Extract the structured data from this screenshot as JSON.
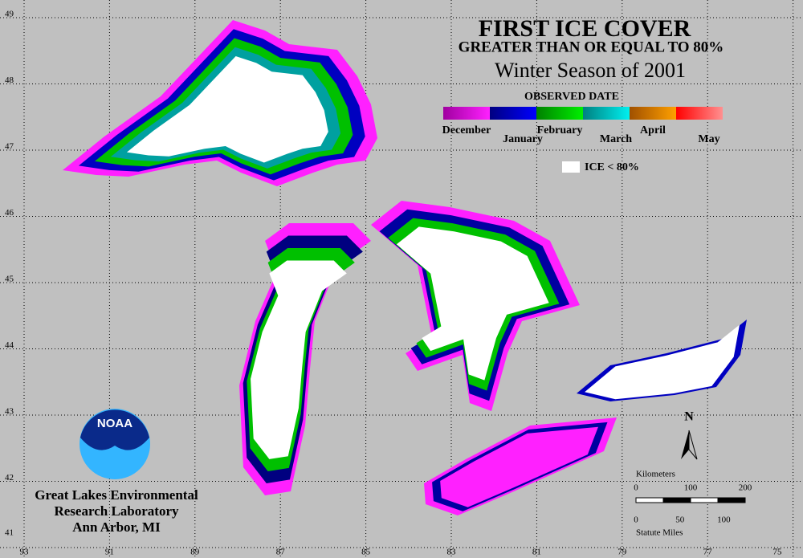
{
  "title": "FIRST ICE COVER",
  "subtitle": "GREATER THAN OR EQUAL TO 80%",
  "season": "Winter Season of 2001",
  "legend": {
    "title": "OBSERVED DATE",
    "items": [
      {
        "label": "December",
        "colors": [
          "#a000a0",
          "#ff20ff"
        ]
      },
      {
        "label": "January",
        "colors": [
          "#000080",
          "#0000ff"
        ]
      },
      {
        "label": "February",
        "colors": [
          "#008000",
          "#00f000"
        ]
      },
      {
        "label": "March",
        "colors": [
          "#008080",
          "#00f0f0"
        ]
      },
      {
        "label": "April",
        "colors": [
          "#a05000",
          "#ffa000"
        ]
      },
      {
        "label": "May",
        "colors": [
          "#ff0000",
          "#ff9090"
        ]
      }
    ],
    "no_ice": "ICE < 80%"
  },
  "grid": {
    "latitudes": [
      49,
      48,
      47,
      46,
      45,
      44,
      43,
      42,
      41
    ],
    "longitudes": [
      93,
      91,
      89,
      87,
      85,
      83,
      81,
      79,
      77,
      75
    ]
  },
  "north": "N",
  "scale": {
    "km_label": "Kilometers",
    "km_ticks": [
      0,
      100,
      200
    ],
    "mi_label": "Statute Miles",
    "mi_ticks": [
      0,
      50,
      100
    ]
  },
  "logo": "NOAA",
  "credit": [
    "Great Lakes Environmental",
    "Research Laboratory",
    "Ann Arbor, MI"
  ]
}
